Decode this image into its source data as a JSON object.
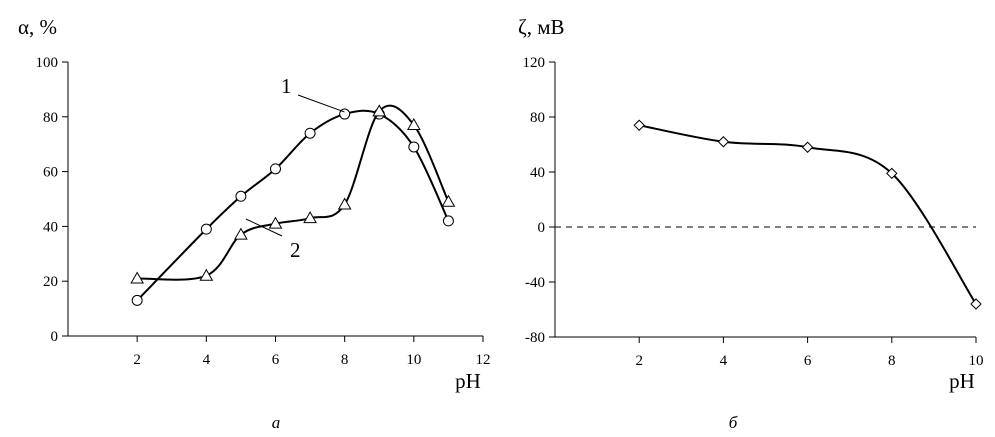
{
  "chart_data": [
    {
      "type": "line",
      "caption": "а",
      "ylabel": "α, %",
      "xlabel": "pH",
      "xlim": [
        0,
        12
      ],
      "ylim": [
        0,
        100
      ],
      "x_ticks": [
        2,
        4,
        6,
        8,
        10,
        12
      ],
      "y_ticks": [
        0,
        20,
        40,
        60,
        80,
        100
      ],
      "y_tick_labels": [
        "0",
        "20",
        "40",
        "60",
        "80",
        "100"
      ],
      "grid": false,
      "series": [
        {
          "name": "1",
          "marker": "circle",
          "color": "#000000",
          "points": [
            [
              2,
              13
            ],
            [
              4,
              39
            ],
            [
              5,
              51
            ],
            [
              6,
              61
            ],
            [
              7,
              74
            ],
            [
              8,
              81
            ],
            [
              9,
              81
            ],
            [
              10,
              69
            ],
            [
              11,
              42
            ]
          ]
        },
        {
          "name": "2",
          "marker": "triangle",
          "color": "#000000",
          "points": [
            [
              2,
              21
            ],
            [
              4,
              22
            ],
            [
              5,
              37
            ],
            [
              6,
              41
            ],
            [
              7,
              43
            ],
            [
              8,
              48
            ],
            [
              9,
              82
            ],
            [
              10,
              77
            ],
            [
              11,
              49
            ]
          ]
        }
      ]
    },
    {
      "type": "line",
      "caption": "б",
      "ylabel": "ζ, мВ",
      "xlabel": "pH",
      "xlim": [
        0,
        10
      ],
      "ylim": [
        -80,
        120
      ],
      "x_ticks": [
        2,
        4,
        6,
        8,
        10
      ],
      "y_ticks": [
        -80,
        -40,
        0,
        40,
        80,
        120
      ],
      "y_tick_labels": [
        "-80",
        "-40",
        "0",
        "40",
        "80",
        "120"
      ],
      "grid": false,
      "reference_line": {
        "y": 0,
        "style": "dashed"
      },
      "series": [
        {
          "marker": "diamond",
          "color": "#000000",
          "points": [
            [
              2,
              74
            ],
            [
              4,
              62
            ],
            [
              6,
              58
            ],
            [
              8,
              39
            ],
            [
              10,
              -56
            ]
          ]
        }
      ]
    }
  ]
}
